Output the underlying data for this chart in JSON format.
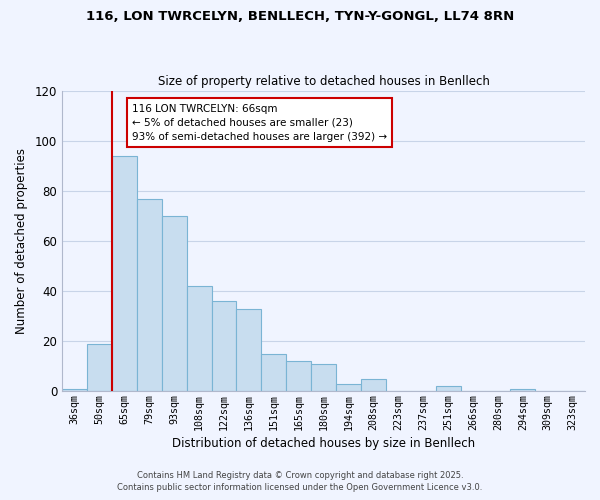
{
  "title_line1": "116, LON TWRCELYN, BENLLECH, TYN-Y-GONGL, LL74 8RN",
  "title_line2": "Size of property relative to detached houses in Benllech",
  "xlabel": "Distribution of detached houses by size in Benllech",
  "ylabel": "Number of detached properties",
  "categories": [
    "36sqm",
    "50sqm",
    "65sqm",
    "79sqm",
    "93sqm",
    "108sqm",
    "122sqm",
    "136sqm",
    "151sqm",
    "165sqm",
    "180sqm",
    "194sqm",
    "208sqm",
    "223sqm",
    "237sqm",
    "251sqm",
    "266sqm",
    "280sqm",
    "294sqm",
    "309sqm",
    "323sqm"
  ],
  "values": [
    1,
    19,
    94,
    77,
    70,
    42,
    36,
    33,
    15,
    12,
    11,
    3,
    5,
    0,
    0,
    2,
    0,
    0,
    1,
    0,
    0
  ],
  "bar_color": "#c8ddef",
  "bar_edge_color": "#7ab4d4",
  "highlight_index": 2,
  "highlight_line_color": "#cc0000",
  "ylim": [
    0,
    120
  ],
  "yticks": [
    0,
    20,
    40,
    60,
    80,
    100,
    120
  ],
  "annotation_title": "116 LON TWRCELYN: 66sqm",
  "annotation_line1": "← 5% of detached houses are smaller (23)",
  "annotation_line2": "93% of semi-detached houses are larger (392) →",
  "footer_line1": "Contains HM Land Registry data © Crown copyright and database right 2025.",
  "footer_line2": "Contains public sector information licensed under the Open Government Licence v3.0.",
  "background_color": "#f0f4ff",
  "grid_color": "#c8d4e8"
}
